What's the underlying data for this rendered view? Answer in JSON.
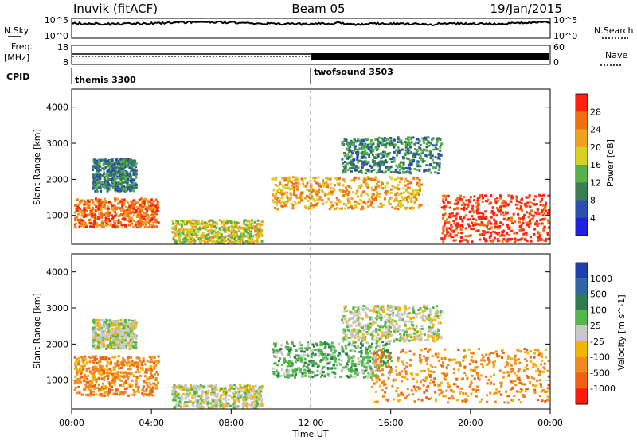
{
  "header": {
    "station": "Inuvik (fitACF)",
    "beam": "Beam 05",
    "date": "19/Jan/2015"
  },
  "noise_panel": {
    "left_label": "N.Sky",
    "right_label": "N.Search",
    "left_ticks": [
      "10^5",
      "10^0"
    ],
    "right_ticks": [
      "10^5",
      "10^0"
    ]
  },
  "freq_panel": {
    "left_label_1": "Freq.",
    "left_label_2": "[MHz]",
    "right_label": "Nave",
    "left_ticks": [
      "18",
      "8"
    ],
    "right_ticks": [
      "60",
      "0"
    ]
  },
  "cpid": {
    "label": "CPID",
    "modes": [
      {
        "name": "themis 3300",
        "start_hour": 0
      },
      {
        "name": "twofsound 3503",
        "start_hour": 12
      }
    ]
  },
  "axes": {
    "ylabel": "Slant Range [km]",
    "xlabel": "Time UT",
    "y_ticks": [
      "1000",
      "2000",
      "3000",
      "4000"
    ],
    "x_ticks": [
      "00:00",
      "04:00",
      "08:00",
      "12:00",
      "16:00",
      "20:00",
      "00:00"
    ]
  },
  "colors": {
    "power_scale": [
      "#2020e0",
      "#2a4fb0",
      "#3a7d55",
      "#55b04a",
      "#d8d020",
      "#f0a020",
      "#f07010",
      "#ff2010"
    ],
    "velocity_scale": [
      "#1d3fb0",
      "#3066a8",
      "#2e7d4e",
      "#52b84a",
      "#c8c8c8",
      "#f4b400",
      "#f08a20",
      "#f06010",
      "#ff1a10"
    ]
  },
  "chart_data": [
    {
      "type": "heatmap",
      "title": "Power",
      "xlabel": "Time UT",
      "ylabel": "Slant Range [km]",
      "xlim": [
        0,
        24
      ],
      "ylim": [
        200,
        4500
      ],
      "colorbar": {
        "label": "Power [dB]",
        "ticks": [
          "4",
          "8",
          "12",
          "16",
          "20",
          "24",
          "28"
        ]
      },
      "regions": [
        {
          "t": [
            0.1,
            4.3
          ],
          "r": [
            700,
            1500
          ],
          "value": 26
        },
        {
          "t": [
            1.0,
            3.2
          ],
          "r": [
            1700,
            2600
          ],
          "value": 12
        },
        {
          "t": [
            5.0,
            9.5
          ],
          "r": [
            250,
            900
          ],
          "value": 18
        },
        {
          "t": [
            10.0,
            17.5
          ],
          "r": [
            1200,
            2100
          ],
          "value": 20
        },
        {
          "t": [
            13.5,
            18.5
          ],
          "r": [
            2200,
            3200
          ],
          "value": 12
        },
        {
          "t": [
            18.5,
            24.0
          ],
          "r": [
            300,
            1600
          ],
          "value": 28
        }
      ]
    },
    {
      "type": "heatmap",
      "title": "Velocity",
      "xlabel": "Time UT",
      "ylabel": "Slant Range [km]",
      "xlim": [
        0,
        24
      ],
      "ylim": [
        200,
        4500
      ],
      "colorbar": {
        "label": "Velocity [m s^-1]",
        "ticks": [
          "1000",
          "500",
          "100",
          "25",
          "-25",
          "-100",
          "-500",
          "-1000"
        ]
      },
      "regions": [
        {
          "t": [
            0.1,
            4.3
          ],
          "r": [
            600,
            1700
          ],
          "value": -100
        },
        {
          "t": [
            1.0,
            3.2
          ],
          "r": [
            1900,
            2700
          ],
          "value": 0
        },
        {
          "t": [
            5.0,
            9.5
          ],
          "r": [
            250,
            900
          ],
          "value": 0
        },
        {
          "t": [
            10.0,
            16.0
          ],
          "r": [
            1100,
            2100
          ],
          "value": 100
        },
        {
          "t": [
            13.5,
            18.5
          ],
          "r": [
            2100,
            3100
          ],
          "value": 0
        },
        {
          "t": [
            15.0,
            24.0
          ],
          "r": [
            400,
            1900
          ],
          "value": -100
        }
      ]
    }
  ]
}
